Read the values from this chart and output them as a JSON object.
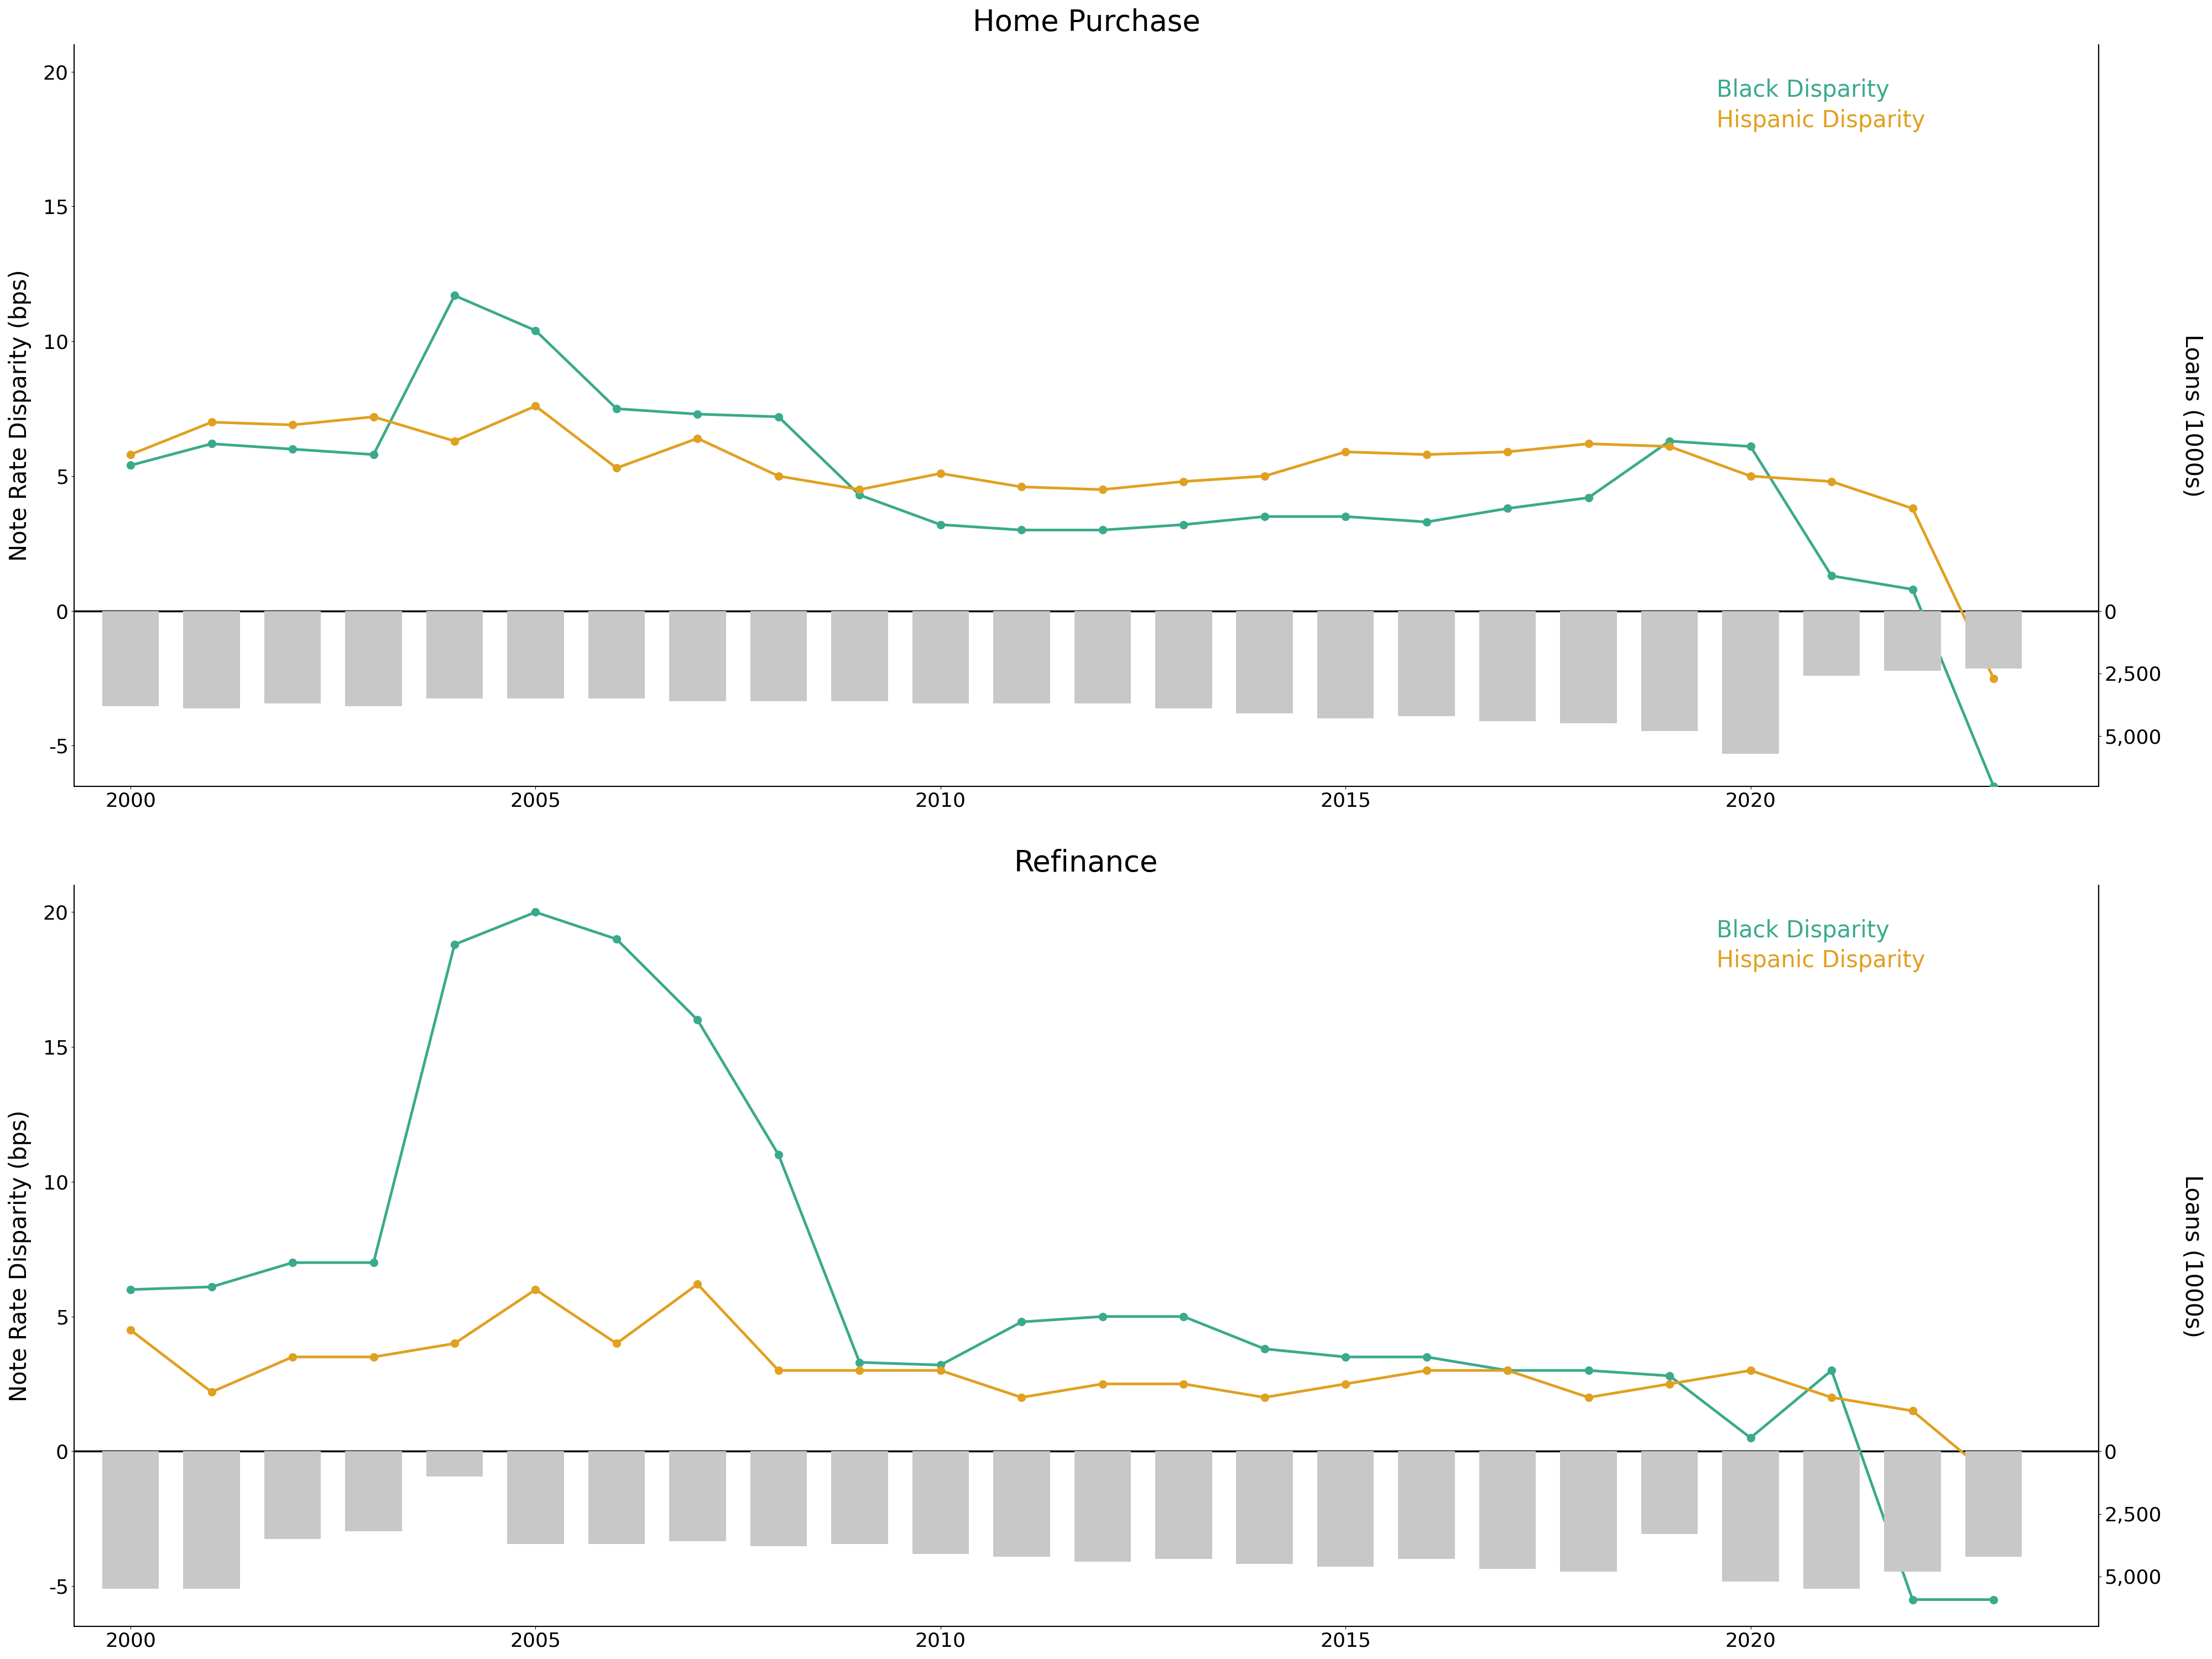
{
  "hp_years": [
    2000,
    2001,
    2002,
    2003,
    2004,
    2005,
    2006,
    2007,
    2008,
    2009,
    2010,
    2011,
    2012,
    2013,
    2014,
    2015,
    2016,
    2017,
    2018,
    2019,
    2020,
    2021,
    2022,
    2023
  ],
  "hp_black": [
    5.4,
    6.2,
    6.0,
    5.8,
    11.7,
    10.4,
    7.5,
    7.3,
    7.2,
    4.3,
    3.2,
    3.0,
    3.0,
    3.2,
    3.5,
    3.5,
    3.3,
    3.8,
    4.2,
    6.3,
    6.1,
    1.3,
    0.8,
    -6.5
  ],
  "hp_hispanic": [
    5.8,
    7.0,
    6.9,
    7.2,
    6.3,
    7.6,
    5.3,
    6.4,
    5.0,
    4.5,
    5.1,
    4.6,
    4.5,
    4.8,
    5.0,
    5.9,
    5.8,
    5.9,
    6.2,
    6.1,
    5.0,
    4.8,
    3.8,
    -2.5
  ],
  "hp_loans": [
    3800,
    3900,
    3700,
    3800,
    3500,
    3500,
    3500,
    3600,
    3600,
    3600,
    3700,
    3700,
    3700,
    3900,
    4100,
    4300,
    4200,
    4400,
    4500,
    4800,
    5700,
    2600,
    2400,
    2300
  ],
  "ref_years": [
    2000,
    2001,
    2002,
    2003,
    2004,
    2005,
    2006,
    2007,
    2008,
    2009,
    2010,
    2011,
    2012,
    2013,
    2014,
    2015,
    2016,
    2017,
    2018,
    2019,
    2020,
    2021,
    2022,
    2023
  ],
  "ref_black": [
    6.0,
    6.1,
    7.0,
    7.0,
    18.8,
    20.0,
    19.0,
    16.0,
    11.0,
    3.3,
    3.2,
    4.8,
    5.0,
    5.0,
    3.8,
    3.5,
    3.5,
    3.0,
    3.0,
    2.8,
    0.5,
    3.0,
    -5.5,
    -5.5
  ],
  "ref_hispanic": [
    4.5,
    2.2,
    3.5,
    3.5,
    4.0,
    6.0,
    4.0,
    6.2,
    3.0,
    3.0,
    3.0,
    2.0,
    2.5,
    2.5,
    2.0,
    2.5,
    3.0,
    3.0,
    2.0,
    2.5,
    3.0,
    2.0,
    1.5,
    -1.0
  ],
  "ref_loans": [
    5500,
    5500,
    3500,
    3200,
    1000,
    3700,
    3700,
    3600,
    3800,
    3700,
    4100,
    4200,
    4400,
    4300,
    4500,
    4600,
    4300,
    4700,
    4800,
    3300,
    5200,
    5500,
    4800,
    4200
  ],
  "black_color": "#3aaa8c",
  "hispanic_color": "#e0a020",
  "bar_color": "#c8c8c8",
  "title_hp": "Home Purchase",
  "title_ref": "Refinance",
  "ylabel_left": "Note Rate Disparity (bps)",
  "ylabel_right": "Loans (1000s)",
  "left_ylim": [
    -6.5,
    21
  ],
  "left_yticks": [
    -5,
    0,
    5,
    10,
    15,
    20
  ],
  "right_yticks_vals": [
    0,
    2500,
    5000
  ],
  "right_ytick_labels": [
    "0",
    "2,500",
    "5,000"
  ],
  "xticks": [
    2000,
    2005,
    2010,
    2015,
    2020
  ],
  "xlim": [
    1999.3,
    2024.3
  ],
  "legend_labels": [
    "Black Disparity",
    "Hispanic Disparity"
  ]
}
